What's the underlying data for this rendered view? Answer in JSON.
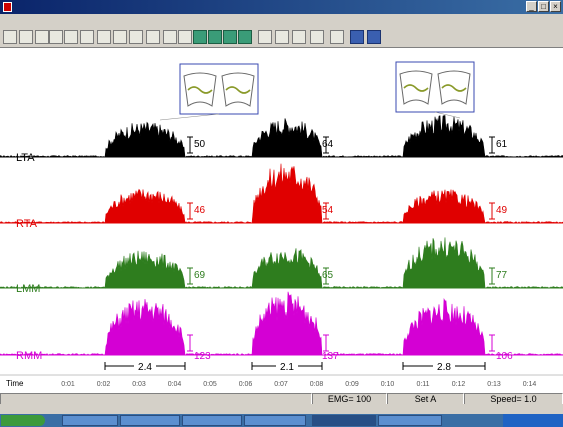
{
  "window": {
    "title": "",
    "controls": [
      "_",
      "□",
      "×"
    ]
  },
  "menu": {
    "items": [
      "",
      "",
      "",
      "",
      "",
      "",
      "",
      "",
      "",
      "",
      "",
      "",
      ""
    ]
  },
  "toolbar": {
    "buttons": [
      "new",
      "open",
      "save",
      "arrow-down",
      "arrow-up",
      "filter",
      "list",
      "grid",
      "lines",
      "text",
      "copy",
      "paste",
      "chart",
      "chart",
      "chart",
      "chart",
      "zoom",
      "dots",
      "bars",
      "bars",
      "print",
      "grid",
      "grid"
    ]
  },
  "plot": {
    "channels": [
      {
        "label": "LTA",
        "color": "#000000",
        "peaks": [
          "50",
          "64",
          "61"
        ]
      },
      {
        "label": "RTA",
        "color": "#e00000",
        "peaks": [
          "46",
          "54",
          "49"
        ]
      },
      {
        "label": "LMM",
        "color": "#2e7d1e",
        "peaks": [
          "69",
          "65",
          "77"
        ]
      },
      {
        "label": "RMM",
        "color": "#d400d4",
        "peaks": [
          "123",
          "137",
          "106"
        ]
      }
    ],
    "intervals": [
      "2.4",
      "2.1",
      "2.8"
    ],
    "time_axis": {
      "label": "Time",
      "ticks": [
        "0:01",
        "0:02",
        "0:03",
        "0:04",
        "0:05",
        "0:06",
        "0:07",
        "0:08",
        "0:09",
        "0:10",
        "0:11",
        "0:12",
        "0:13",
        "0:14"
      ]
    },
    "thumb_colors": {
      "frame": "#3a4ab0",
      "trace": "#8a9a2a"
    }
  },
  "status": {
    "emg": "EMG= 100",
    "set": "Set A",
    "speed": "Speed= 1.0"
  },
  "taskbar": {
    "items": [
      "",
      "",
      "",
      "",
      "",
      ""
    ]
  }
}
